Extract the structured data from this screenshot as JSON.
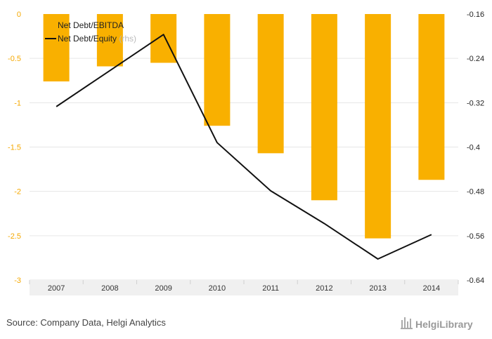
{
  "chart_data": {
    "type": "bar+line",
    "categories": [
      "2007",
      "2008",
      "2009",
      "2010",
      "2011",
      "2012",
      "2013",
      "2014"
    ],
    "series": [
      {
        "name": "Net Debt/EBITDA",
        "type": "bar",
        "axis": "left",
        "color": "#f9b000",
        "values": [
          -0.76,
          -0.59,
          -0.55,
          -1.26,
          -1.57,
          -2.1,
          -2.53,
          -1.87
        ]
      },
      {
        "name": "Net Debt/Equity",
        "name_suffix": "(rhs)",
        "type": "line",
        "axis": "right",
        "color": "#111111",
        "values": [
          -0.327,
          -0.262,
          -0.197,
          -0.392,
          -0.479,
          -0.538,
          -0.602,
          -0.558
        ]
      }
    ],
    "y_left": {
      "min": -3,
      "max": 0,
      "ticks": [
        "0",
        "-0.5",
        "-1",
        "-1.5",
        "-2",
        "-2.5",
        "-3"
      ],
      "tick_values": [
        0,
        -0.5,
        -1,
        -1.5,
        -2,
        -2.5,
        -3
      ]
    },
    "y_right": {
      "min": -0.64,
      "max": -0.16,
      "ticks": [
        "-0.16",
        "-0.24",
        "-0.32",
        "-0.4",
        "-0.48",
        "-0.56",
        "-0.64"
      ],
      "tick_values": [
        -0.16,
        -0.24,
        -0.32,
        -0.4,
        -0.48,
        -0.56,
        -0.64
      ]
    },
    "grid": true,
    "legend": "top-left"
  },
  "footer": {
    "source": "Source: Company Data, Helgi Analytics",
    "brand": "HelgiLibrary"
  },
  "colors": {
    "grid": "#e6e6e6",
    "axis_band": "#f0f0f0"
  }
}
